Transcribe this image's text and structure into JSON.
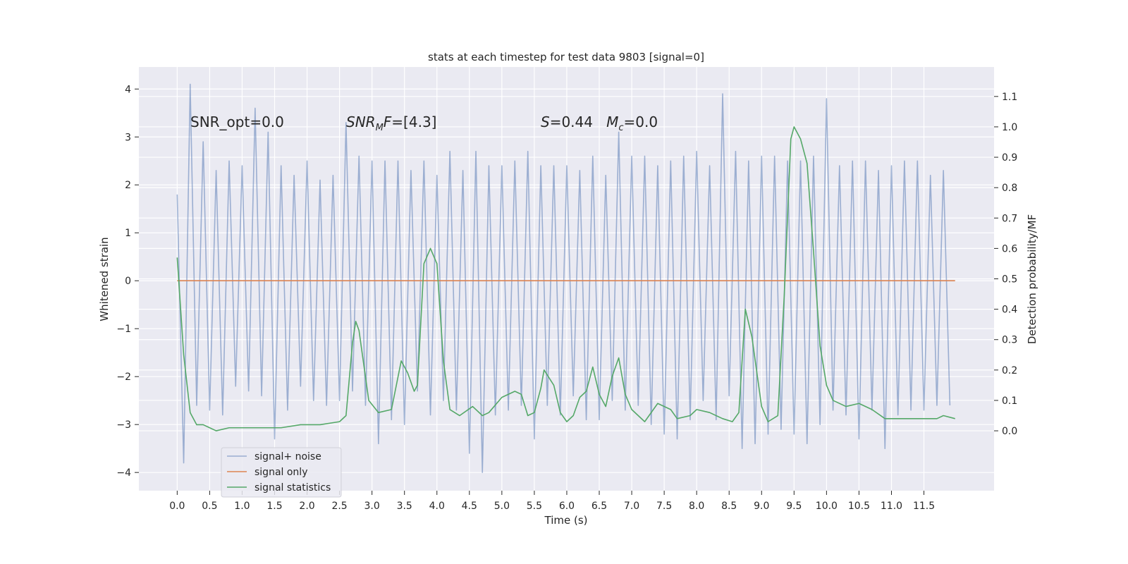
{
  "chart_data": {
    "type": "line",
    "title": "stats at each timestep for test data 9803 [signal=0]",
    "xlabel": "Time (s)",
    "ylabel": "Whitened strain",
    "y2label": "Detection probability/MF",
    "xlim": [
      -0.59,
      12.58
    ],
    "ylim": [
      -4.38,
      4.46
    ],
    "y2lim": [
      -0.197,
      1.197
    ],
    "xticks": [
      {
        "value": 0,
        "label": "0.0"
      },
      0.5,
      {
        "value": 1,
        "label": "1.0"
      },
      1.5,
      {
        "value": 2,
        "label": "2.0"
      },
      2.5,
      {
        "value": 3,
        "label": "3.0"
      },
      3.5,
      {
        "value": 4,
        "label": "4.0"
      },
      4.5,
      {
        "value": 5,
        "label": "5.0"
      },
      5.5,
      {
        "value": 6,
        "label": "6.0"
      },
      6.5,
      {
        "value": 7,
        "label": "7.0"
      },
      7.5,
      {
        "value": 8,
        "label": "8.0"
      },
      8.5,
      {
        "value": 9,
        "label": "9.0"
      },
      9.5,
      {
        "value": 10,
        "label": "10.0"
      },
      10.5,
      {
        "value": 11,
        "label": "11.0"
      },
      11.5
    ],
    "yticks": [
      {
        "value": -4,
        "label": "−4"
      },
      {
        "value": -3,
        "label": "−3"
      },
      {
        "value": -2,
        "label": "−2"
      },
      {
        "value": -1,
        "label": "−1"
      },
      0,
      1,
      2,
      3,
      4
    ],
    "y2ticks": [
      {
        "value": 0,
        "label": "0.0"
      },
      0.1,
      0.2,
      0.3,
      0.4,
      0.5,
      0.6,
      0.7,
      0.8,
      0.9,
      {
        "value": 1,
        "label": "1.0"
      },
      1.1
    ],
    "grid": true,
    "legend": "lower left",
    "annotations": [
      {
        "parts": [
          {
            "text": "SNR_opt=0.0"
          }
        ]
      },
      {
        "parts": [
          {
            "text": "SNR",
            "italic": true
          },
          {
            "text": "M",
            "italic": true,
            "sub": true
          },
          {
            "text": "F",
            "italic": true
          },
          {
            "text": "=[4.3]"
          }
        ]
      },
      {
        "parts": [
          {
            "text": "S",
            "italic": true
          },
          {
            "text": "=0.44   "
          },
          {
            "text": "M",
            "italic": true
          },
          {
            "text": "c",
            "italic": true,
            "sub": true
          },
          {
            "text": "=0.0"
          }
        ]
      }
    ],
    "series": [
      {
        "name": "signal+ noise",
        "color": "#4c72b0",
        "opacity": 0.5,
        "x": [
          0,
          0.1,
          0.2,
          0.3,
          0.4,
          0.5,
          0.6,
          0.7,
          0.8,
          0.9,
          1,
          1.1,
          1.2,
          1.3,
          1.4,
          1.5,
          1.6,
          1.7,
          1.8,
          1.9,
          2,
          2.1,
          2.2,
          2.3,
          2.4,
          2.5,
          2.6,
          2.7,
          2.8,
          2.9,
          3,
          3.1,
          3.2,
          3.3,
          3.4,
          3.5,
          3.6,
          3.7,
          3.8,
          3.9,
          4,
          4.1,
          4.2,
          4.3,
          4.4,
          4.5,
          4.6,
          4.7,
          4.8,
          4.9,
          5,
          5.1,
          5.2,
          5.3,
          5.4,
          5.5,
          5.6,
          5.7,
          5.8,
          5.9,
          6,
          6.1,
          6.2,
          6.3,
          6.4,
          6.5,
          6.6,
          6.7,
          6.8,
          6.9,
          7,
          7.1,
          7.2,
          7.3,
          7.4,
          7.5,
          7.6,
          7.7,
          7.8,
          7.9,
          8,
          8.1,
          8.2,
          8.3,
          8.4,
          8.5,
          8.6,
          8.7,
          8.8,
          8.9,
          9,
          9.1,
          9.2,
          9.3,
          9.4,
          9.5,
          9.6,
          9.7,
          9.8,
          9.9,
          10,
          10.1,
          10.2,
          10.3,
          10.4,
          10.5,
          10.6,
          10.7,
          10.8,
          10.9,
          11,
          11.1,
          11.2,
          11.3,
          11.4,
          11.5,
          11.6,
          11.7,
          11.8,
          11.9
        ],
        "values": [
          1.8,
          -3.8,
          4.1,
          -2.6,
          2.9,
          -2.7,
          2.3,
          -2.8,
          2.5,
          -2.2,
          2.4,
          -2.3,
          3.6,
          -2.4,
          3.1,
          -3.3,
          2.4,
          -2.7,
          2.2,
          -2.2,
          2.5,
          -2.5,
          2.1,
          -2.6,
          2.2,
          -2.5,
          3.3,
          -2.3,
          2.6,
          -2.6,
          2.5,
          -3.4,
          2.5,
          -2.9,
          2.5,
          -3.0,
          2.3,
          -2.3,
          2.5,
          -2.8,
          2.2,
          -2.5,
          2.7,
          -2.7,
          2.3,
          -3.6,
          2.7,
          -4.0,
          2.4,
          -2.8,
          2.4,
          -2.7,
          2.5,
          -2.6,
          2.7,
          -3.3,
          2.4,
          -2.6,
          2.4,
          -2.8,
          2.4,
          -2.4,
          2.3,
          -2.9,
          2.6,
          -2.9,
          2.2,
          -2.5,
          3.1,
          -2.7,
          2.6,
          -2.6,
          2.6,
          -3.0,
          2.4,
          -3.2,
          2.5,
          -3.3,
          2.6,
          -2.9,
          2.7,
          -2.5,
          2.4,
          -2.9,
          3.9,
          -2.4,
          2.7,
          -3.5,
          2.5,
          -3.4,
          2.6,
          -3.2,
          2.6,
          -3.1,
          2.5,
          -3.2,
          2.5,
          -3.4,
          2.6,
          -3.0,
          3.8,
          -2.7,
          2.4,
          -2.8,
          2.5,
          -3.3,
          2.5,
          -2.7,
          2.3,
          -3.5,
          2.4,
          -2.8,
          2.5,
          -2.7,
          2.5,
          -2.7,
          2.2,
          -2.6,
          2.3,
          -2.6
        ]
      },
      {
        "name": "signal only",
        "color": "#dd8452",
        "opacity": 1,
        "x": [
          0,
          11.98
        ],
        "values": [
          0,
          0
        ]
      },
      {
        "name": "signal statistics",
        "color": "#55a868",
        "opacity": 1,
        "axis": "y2",
        "x": [
          0,
          0.1,
          0.2,
          0.3,
          0.4,
          0.5,
          0.6,
          0.8,
          1,
          1.3,
          1.6,
          1.9,
          2.2,
          2.5,
          2.6,
          2.7,
          2.75,
          2.8,
          2.95,
          3.1,
          3.3,
          3.45,
          3.55,
          3.65,
          3.7,
          3.8,
          3.9,
          4,
          4.1,
          4.2,
          4.35,
          4.55,
          4.7,
          4.8,
          5,
          5.2,
          5.3,
          5.4,
          5.5,
          5.6,
          5.65,
          5.8,
          5.9,
          6,
          6.1,
          6.2,
          6.3,
          6.4,
          6.5,
          6.6,
          6.7,
          6.8,
          6.9,
          7,
          7.2,
          7.4,
          7.6,
          7.7,
          7.9,
          8,
          8.2,
          8.4,
          8.55,
          8.65,
          8.75,
          8.85,
          9,
          9.1,
          9.25,
          9.35,
          9.45,
          9.5,
          9.6,
          9.7,
          9.8,
          9.9,
          10,
          10.1,
          10.3,
          10.5,
          10.7,
          10.9,
          11.1,
          11.3,
          11.5,
          11.7,
          11.8,
          11.98
        ],
        "values": [
          0.57,
          0.25,
          0.06,
          0.02,
          0.02,
          0.01,
          0.0,
          0.01,
          0.01,
          0.01,
          0.01,
          0.02,
          0.02,
          0.03,
          0.05,
          0.29,
          0.36,
          0.33,
          0.1,
          0.06,
          0.07,
          0.23,
          0.19,
          0.13,
          0.15,
          0.55,
          0.6,
          0.55,
          0.23,
          0.07,
          0.05,
          0.08,
          0.05,
          0.06,
          0.11,
          0.13,
          0.12,
          0.05,
          0.06,
          0.14,
          0.2,
          0.15,
          0.06,
          0.03,
          0.05,
          0.11,
          0.13,
          0.21,
          0.12,
          0.08,
          0.18,
          0.24,
          0.12,
          0.07,
          0.03,
          0.09,
          0.07,
          0.04,
          0.05,
          0.07,
          0.06,
          0.04,
          0.03,
          0.06,
          0.4,
          0.31,
          0.08,
          0.03,
          0.05,
          0.45,
          0.96,
          1.0,
          0.96,
          0.88,
          0.59,
          0.28,
          0.15,
          0.1,
          0.08,
          0.09,
          0.07,
          0.04,
          0.04,
          0.04,
          0.04,
          0.04,
          0.05,
          0.04
        ]
      }
    ]
  }
}
